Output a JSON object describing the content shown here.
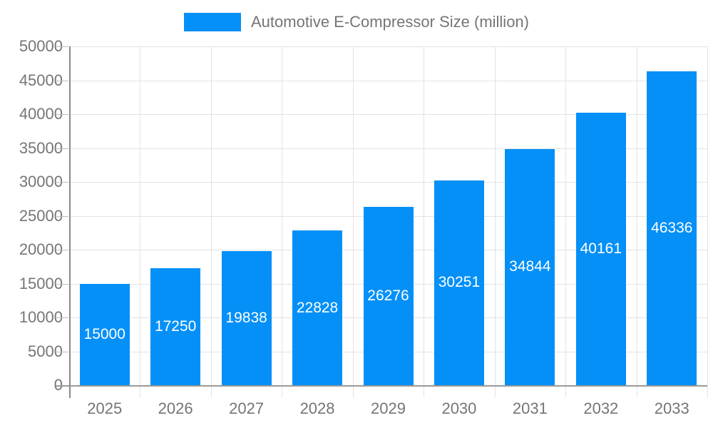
{
  "legend": {
    "label": "Automotive E-Compressor Size (million)",
    "swatch_color": "#0590f8"
  },
  "chart_data": {
    "type": "bar",
    "title": "Automotive E-Compressor Size (million)",
    "categories": [
      "2025",
      "2026",
      "2027",
      "2028",
      "2029",
      "2030",
      "2031",
      "2032",
      "2033"
    ],
    "values": [
      15000,
      17250,
      19838,
      22828,
      26276,
      30251,
      34844,
      40161,
      46336
    ],
    "xlabel": "",
    "ylabel": "",
    "ylim": [
      0,
      50000
    ],
    "ytick_step": 5000,
    "ytick_labels": [
      "0",
      "5000",
      "10000",
      "15000",
      "20000",
      "25000",
      "30000",
      "35000",
      "40000",
      "45000",
      "50000"
    ],
    "grid": true,
    "legend_position": "top-center",
    "bar_labels_inside": true,
    "colors": {
      "bar": "#0590f8",
      "bar_label": "#ffffff",
      "axis_text": "#757575",
      "gridline": "#e3e3e3",
      "axis_line": "#8a8a8a"
    }
  }
}
